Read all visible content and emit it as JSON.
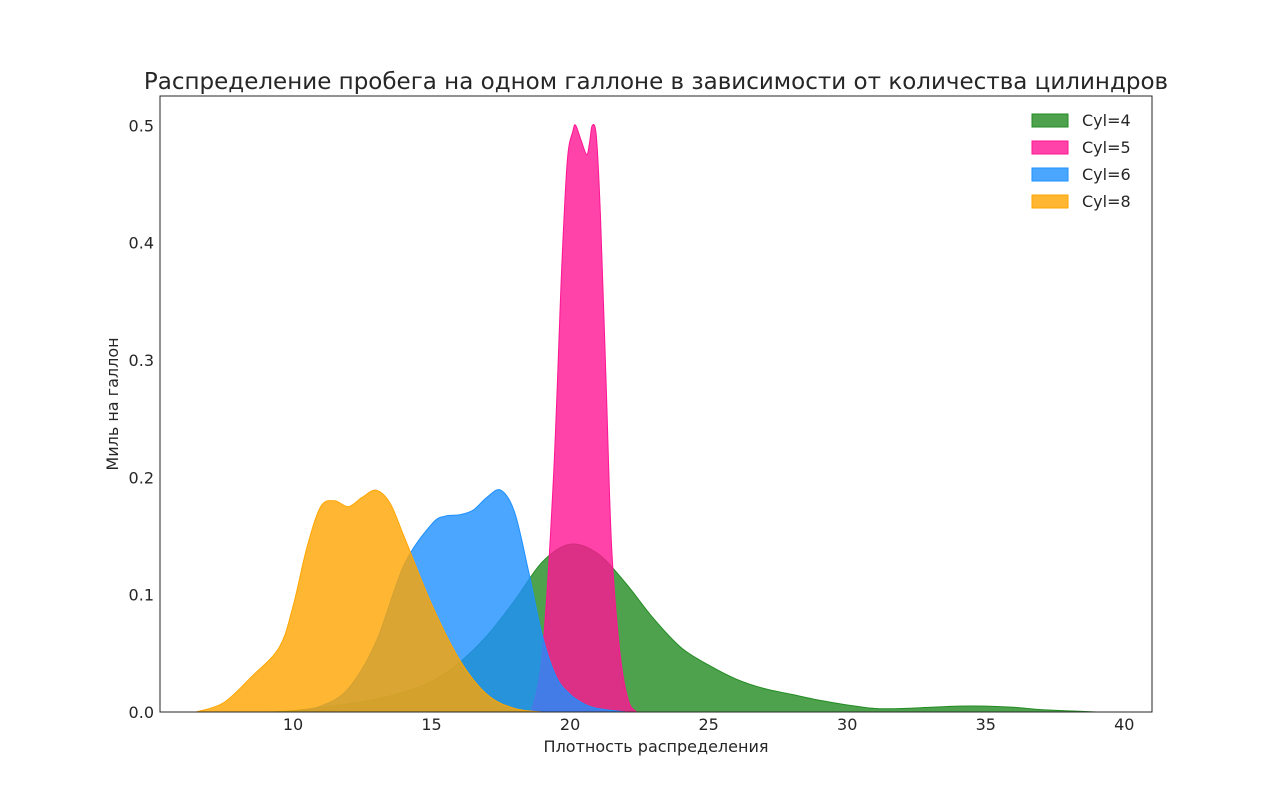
{
  "chart_data": {
    "type": "area",
    "title": "Распределение пробега на одном галлоне в зависимости от количества цилиндров",
    "xlabel": "Плотность распределения",
    "ylabel": "Миль на галлон",
    "xlim": [
      5.2,
      41.0
    ],
    "ylim": [
      0,
      0.525
    ],
    "xticks": [
      10,
      15,
      20,
      25,
      30,
      35,
      40
    ],
    "yticks": [
      0.0,
      0.1,
      0.2,
      0.3,
      0.4,
      0.5
    ],
    "grid": false,
    "legend_position": "top-right",
    "series": [
      {
        "name": "Cyl=4",
        "color": "#228B22",
        "x": [
          9,
          10,
          11,
          12,
          13,
          14,
          15,
          16,
          17,
          18,
          19,
          20,
          21,
          22,
          23,
          24,
          25,
          26,
          27,
          28,
          29,
          30,
          31,
          32,
          33,
          34,
          35,
          36,
          37,
          38,
          39
        ],
        "y": [
          0.0,
          0.001,
          0.004,
          0.007,
          0.011,
          0.017,
          0.026,
          0.042,
          0.065,
          0.095,
          0.128,
          0.143,
          0.135,
          0.11,
          0.08,
          0.055,
          0.04,
          0.028,
          0.02,
          0.015,
          0.01,
          0.006,
          0.003,
          0.003,
          0.004,
          0.005,
          0.005,
          0.004,
          0.002,
          0.001,
          0.0
        ]
      },
      {
        "name": "Cyl=5",
        "color": "#FF1493",
        "x": [
          18.6,
          19.0,
          19.4,
          19.7,
          19.9,
          20.1,
          20.2,
          20.4,
          20.6,
          20.7,
          20.8,
          20.95,
          21.1,
          21.3,
          21.5,
          21.8,
          22.1,
          22.4
        ],
        "y": [
          0.0,
          0.05,
          0.2,
          0.38,
          0.47,
          0.495,
          0.5,
          0.487,
          0.475,
          0.485,
          0.5,
          0.49,
          0.42,
          0.28,
          0.14,
          0.05,
          0.01,
          0.0
        ]
      },
      {
        "name": "Cyl=6",
        "color": "#1E90FF",
        "x": [
          10,
          11,
          12,
          13,
          14,
          15,
          15.5,
          16,
          16.5,
          17,
          17.5,
          18,
          18.5,
          19,
          19.5,
          20,
          20.5,
          21,
          22
        ],
        "y": [
          0.0,
          0.005,
          0.02,
          0.06,
          0.125,
          0.16,
          0.167,
          0.168,
          0.172,
          0.183,
          0.189,
          0.17,
          0.12,
          0.065,
          0.03,
          0.015,
          0.007,
          0.003,
          0.0
        ]
      },
      {
        "name": "Cyl=8",
        "color": "#FFA500",
        "x": [
          6.5,
          7.5,
          8.5,
          9.5,
          10,
          10.5,
          11,
          11.5,
          12,
          12.5,
          13,
          13.5,
          14,
          15,
          16,
          17,
          18,
          19
        ],
        "y": [
          0.0,
          0.008,
          0.03,
          0.055,
          0.09,
          0.14,
          0.175,
          0.18,
          0.175,
          0.183,
          0.189,
          0.178,
          0.15,
          0.092,
          0.045,
          0.015,
          0.003,
          0.0
        ]
      }
    ]
  }
}
